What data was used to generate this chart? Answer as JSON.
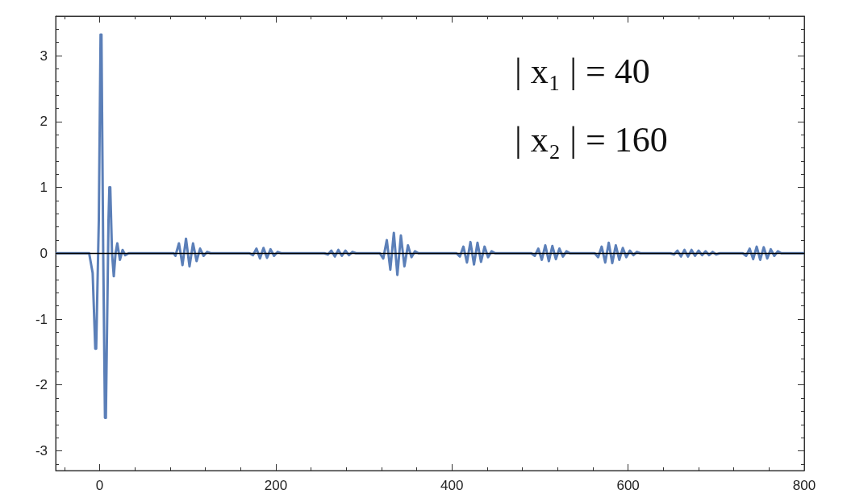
{
  "chart_data": {
    "type": "line",
    "x": [
      -50,
      -20,
      -12,
      -8,
      -5,
      -4,
      -1,
      1,
      2,
      4,
      6,
      7,
      10,
      11,
      12,
      14,
      16,
      18,
      20,
      23,
      26,
      29,
      33,
      40,
      84,
      86,
      90,
      94,
      98,
      102,
      106,
      110,
      114,
      118,
      122,
      126,
      170,
      174,
      178,
      182,
      186,
      190,
      194,
      198,
      202,
      206,
      255,
      259,
      263,
      267,
      271,
      275,
      279,
      283,
      287,
      291,
      318,
      322,
      326,
      330,
      334,
      338,
      342,
      346,
      350,
      354,
      358,
      362,
      405,
      409,
      413,
      417,
      421,
      425,
      429,
      433,
      437,
      441,
      445,
      449,
      490,
      494,
      498,
      502,
      506,
      510,
      514,
      518,
      522,
      526,
      530,
      534,
      562,
      566,
      570,
      574,
      578,
      582,
      586,
      590,
      594,
      598,
      602,
      606,
      610,
      614,
      648,
      652,
      656,
      660,
      664,
      668,
      672,
      676,
      680,
      684,
      688,
      692,
      696,
      700,
      704,
      730,
      734,
      738,
      742,
      746,
      750,
      754,
      758,
      762,
      766,
      770,
      774,
      800
    ],
    "series": [
      {
        "color": "#5b7fb8",
        "values": [
          0,
          0,
          0,
          -0.3,
          -1.45,
          -1.45,
          0.5,
          3.32,
          3.32,
          0,
          -2.5,
          -2.5,
          0.5,
          1.0,
          1.0,
          0,
          -0.35,
          0,
          0.15,
          -0.1,
          0.05,
          -0.03,
          0,
          0,
          0,
          -0.04,
          0.15,
          -0.18,
          0.22,
          -0.2,
          0.15,
          -0.12,
          0.07,
          -0.04,
          0.02,
          0,
          0,
          -0.03,
          0.07,
          -0.08,
          0.08,
          -0.07,
          0.06,
          -0.04,
          0.02,
          0,
          0,
          -0.02,
          0.04,
          -0.05,
          0.05,
          -0.04,
          0.04,
          -0.03,
          0.02,
          0,
          0,
          -0.08,
          0.2,
          -0.25,
          0.31,
          -0.33,
          0.27,
          -0.2,
          0.12,
          -0.06,
          0.03,
          0,
          0,
          -0.05,
          0.1,
          -0.14,
          0.17,
          -0.17,
          0.16,
          -0.13,
          0.1,
          -0.06,
          0.03,
          0,
          0,
          -0.04,
          0.07,
          -0.1,
          0.12,
          -0.12,
          0.11,
          -0.09,
          0.07,
          -0.05,
          0.03,
          0,
          0,
          -0.06,
          0.1,
          -0.14,
          0.16,
          -0.15,
          0.12,
          -0.1,
          0.08,
          -0.06,
          0.04,
          -0.03,
          0.02,
          0,
          0,
          -0.02,
          0.04,
          -0.05,
          0.05,
          -0.05,
          0.05,
          -0.04,
          0.04,
          -0.03,
          0.03,
          -0.03,
          0.02,
          -0.02,
          0,
          0,
          -0.04,
          0.07,
          -0.09,
          0.1,
          -0.1,
          0.09,
          -0.08,
          0.06,
          -0.04,
          0.03,
          0,
          0
        ]
      }
    ],
    "xlim": [
      -50,
      800
    ],
    "xticks": [
      0,
      200,
      400,
      600,
      800
    ],
    "ylim": [
      -3.3,
      3.6
    ],
    "yticks": [
      -3,
      -2,
      -1,
      0,
      1,
      2,
      3
    ],
    "ref_lines": [
      {
        "axis": "y",
        "value": 0,
        "color": "#000000"
      }
    ],
    "annotations": [
      "| x₁ | = 40",
      "| x₂ | = 160"
    ],
    "grid": false,
    "marker": "none",
    "line_style": "solid"
  }
}
